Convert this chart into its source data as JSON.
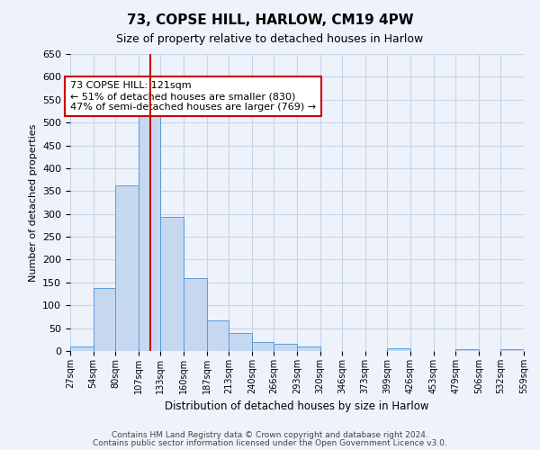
{
  "title": "73, COPSE HILL, HARLOW, CM19 4PW",
  "subtitle": "Size of property relative to detached houses in Harlow",
  "xlabel": "Distribution of detached houses by size in Harlow",
  "ylabel": "Number of detached properties",
  "bar_edges": [
    27,
    54,
    80,
    107,
    133,
    160,
    187,
    213,
    240,
    266,
    293,
    320,
    346,
    373,
    399,
    426,
    453,
    479,
    506,
    532,
    559
  ],
  "bar_heights": [
    10,
    137,
    363,
    540,
    293,
    160,
    67,
    40,
    20,
    15,
    10,
    0,
    0,
    0,
    5,
    0,
    0,
    3,
    0,
    3
  ],
  "bar_color": "#c5d8f0",
  "bar_edge_color": "#5b9bd5",
  "property_size": 121,
  "vline_color": "#cc0000",
  "annotation_text": "73 COPSE HILL: 121sqm\n← 51% of detached houses are smaller (830)\n47% of semi-detached houses are larger (769) →",
  "annotation_box_color": "#cc0000",
  "ylim": [
    0,
    650
  ],
  "yticks": [
    0,
    50,
    100,
    150,
    200,
    250,
    300,
    350,
    400,
    450,
    500,
    550,
    600,
    650
  ],
  "grid_color": "#c8d4e8",
  "background_color": "#eef2fb",
  "footnote1": "Contains HM Land Registry data © Crown copyright and database right 2024.",
  "footnote2": "Contains public sector information licensed under the Open Government Licence v3.0."
}
